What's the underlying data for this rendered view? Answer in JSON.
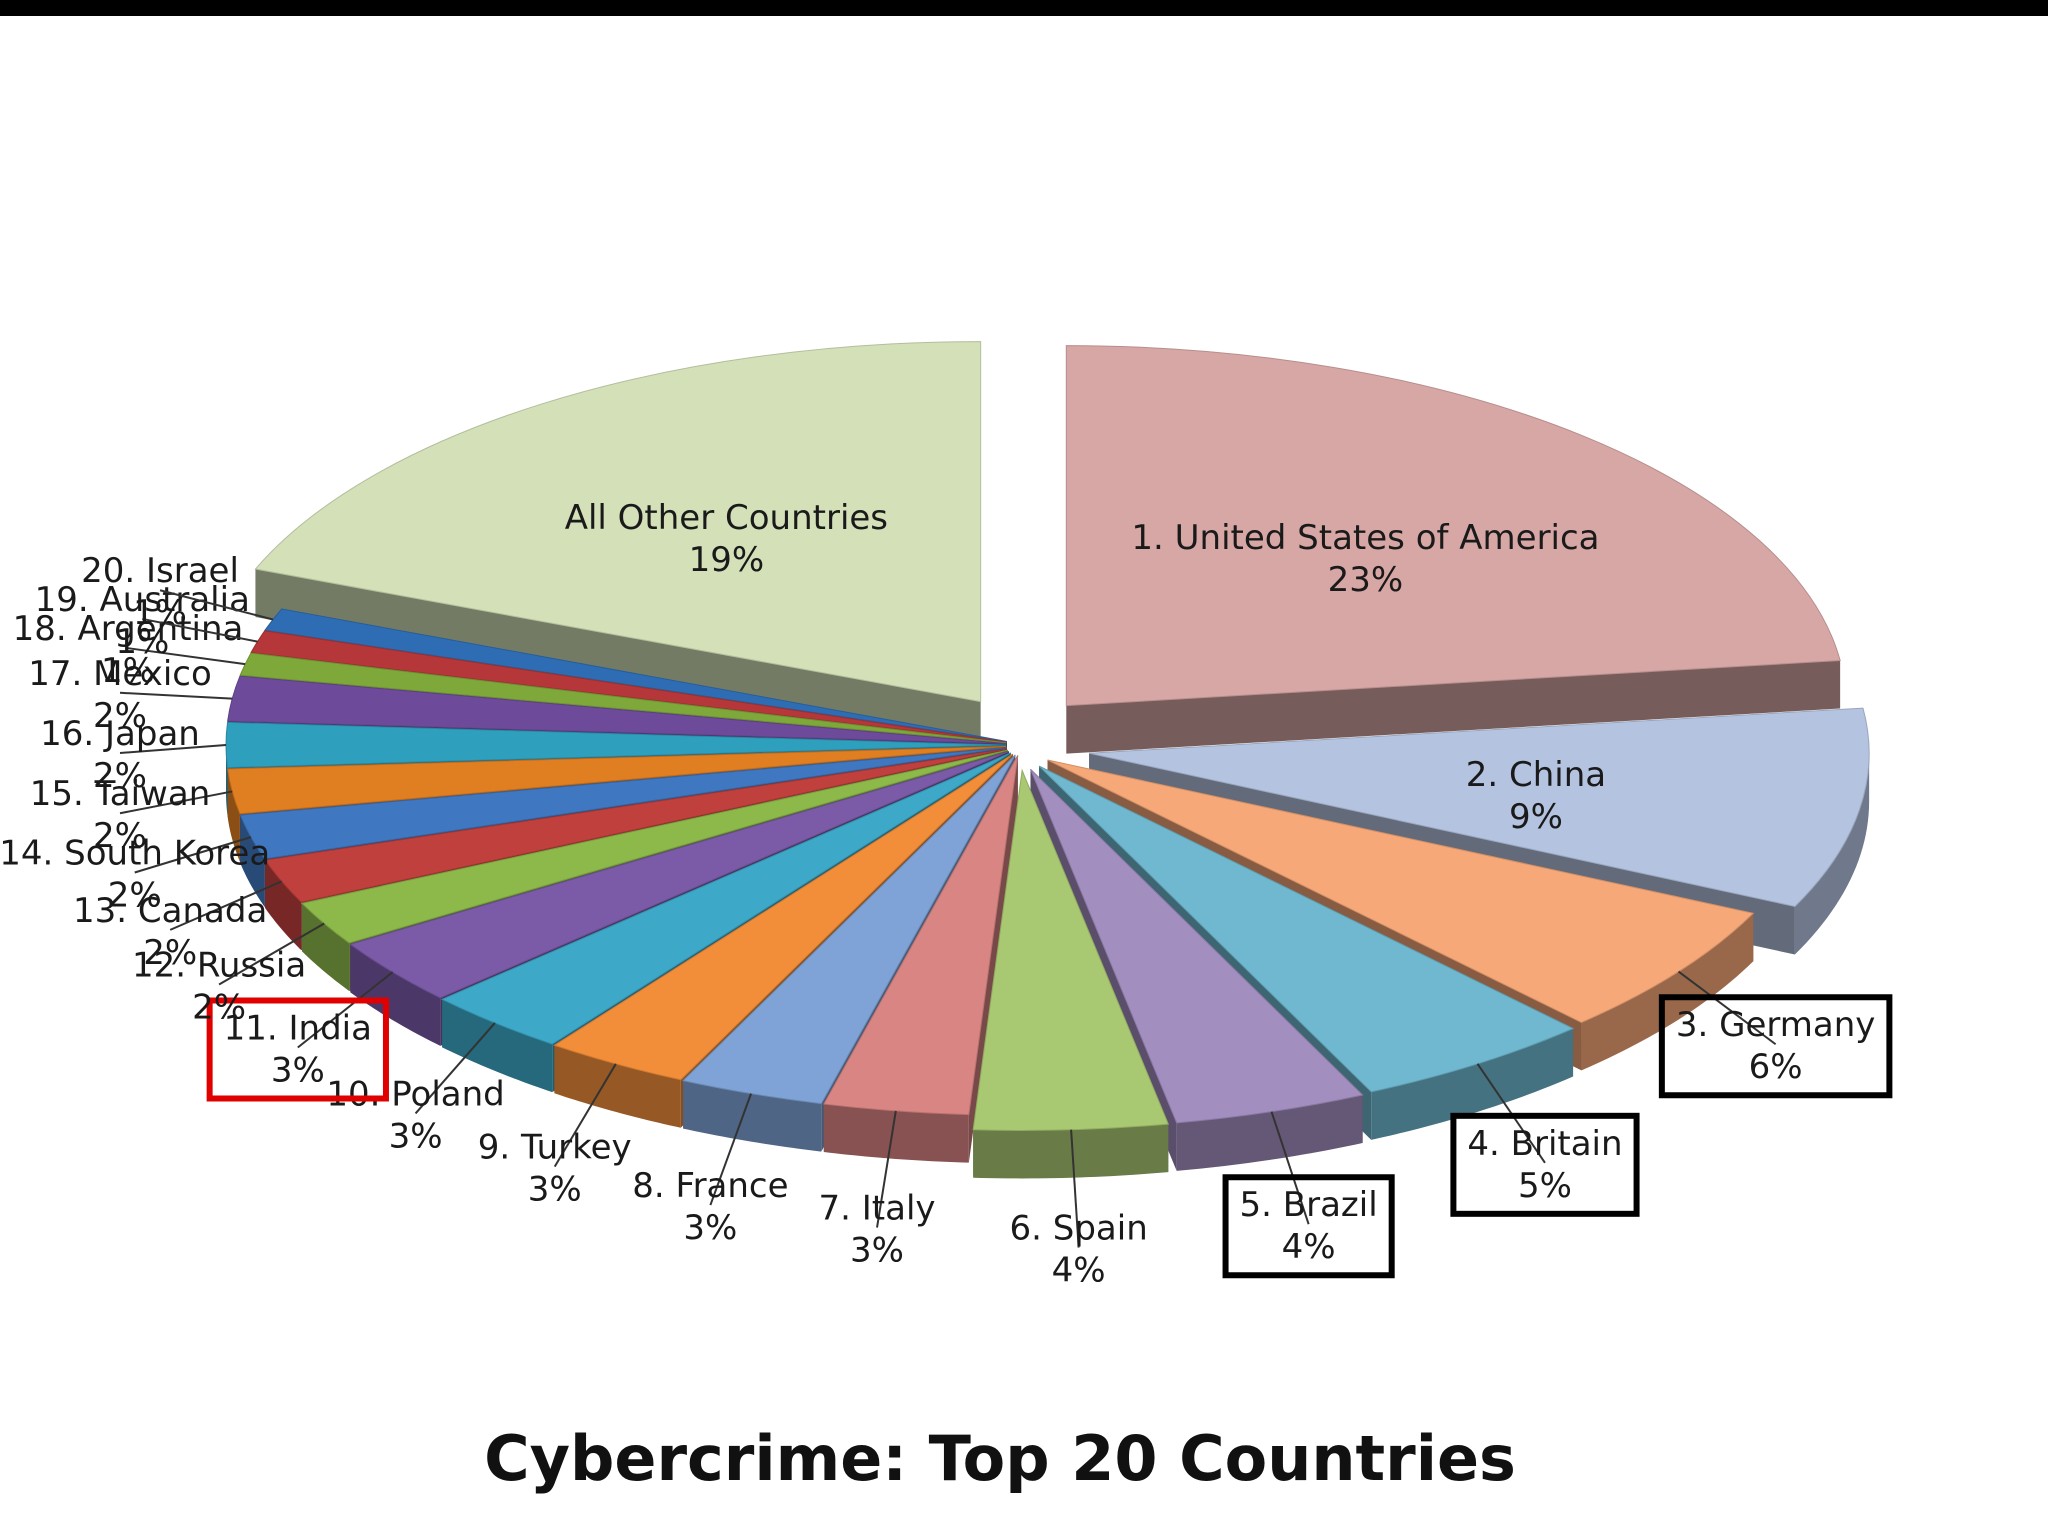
{
  "chart_data": {
    "type": "pie",
    "title": "Cybercrime: Top 20 Countries",
    "slices": [
      {
        "label": "1. United States of America",
        "value": 23,
        "value_label": "23%",
        "color": "#D7A7A6"
      },
      {
        "label": "2. China",
        "value": 9,
        "value_label": "9%",
        "color": "#B4C3E0"
      },
      {
        "label": "3. Germany",
        "value": 6,
        "value_label": "6%",
        "color": "#F6A878",
        "highlight": "black-box"
      },
      {
        "label": "4. Britain",
        "value": 5,
        "value_label": "5%",
        "color": "#6FB8CF",
        "highlight": "black-box"
      },
      {
        "label": "5. Brazil",
        "value": 4,
        "value_label": "4%",
        "color": "#A38EC0",
        "highlight": "black-box"
      },
      {
        "label": "6. Spain",
        "value": 4,
        "value_label": "4%",
        "color": "#A9C872"
      },
      {
        "label": "7. Italy",
        "value": 3,
        "value_label": "3%",
        "color": "#D98583"
      },
      {
        "label": "8. France",
        "value": 3,
        "value_label": "3%",
        "color": "#7FA3D7"
      },
      {
        "label": "9. Turkey",
        "value": 3,
        "value_label": "3%",
        "color": "#F28E3A"
      },
      {
        "label": "10. Poland",
        "value": 3,
        "value_label": "3%",
        "color": "#3DA8C8"
      },
      {
        "label": "11. India",
        "value": 3,
        "value_label": "3%",
        "color": "#7B5BA8",
        "highlight": "red-box"
      },
      {
        "label": "12. Russia",
        "value": 2,
        "value_label": "2%",
        "color": "#8DB84A"
      },
      {
        "label": "13. Canada",
        "value": 2,
        "value_label": "2%",
        "color": "#C0403D"
      },
      {
        "label": "14. South Korea",
        "value": 2,
        "value_label": "2%",
        "color": "#3F77C0"
      },
      {
        "label": "15. Taiwan",
        "value": 2,
        "value_label": "2%",
        "color": "#E07E22"
      },
      {
        "label": "16. Japan",
        "value": 2,
        "value_label": "2%",
        "color": "#2F9FBE"
      },
      {
        "label": "17. Mexico",
        "value": 2,
        "value_label": "2%",
        "color": "#6E4B9A"
      },
      {
        "label": "18. Argentina",
        "value": 1,
        "value_label": "1%",
        "color": "#7FA83B"
      },
      {
        "label": "19. Australia",
        "value": 1,
        "value_label": "1%",
        "color": "#B5373A"
      },
      {
        "label": "20. Israel",
        "value": 1,
        "value_label": "1%",
        "color": "#2E6DB4"
      },
      {
        "label": "All Other Countries",
        "value": 19,
        "value_label": "19%",
        "color": "#D3E0B8"
      }
    ]
  }
}
